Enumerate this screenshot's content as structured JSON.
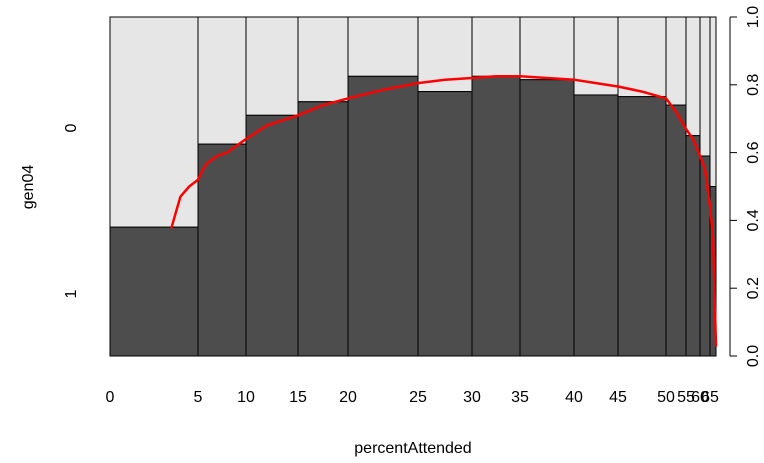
{
  "chart_data": {
    "type": "spineplot",
    "xlabel": "percentAttended",
    "ylabel": "gen04",
    "x_tick_labels": [
      "0",
      "5",
      "10",
      "15",
      "20",
      "25",
      "30",
      "35",
      "40",
      "45",
      "50",
      "55",
      "60",
      "65"
    ],
    "y_left_tick_labels": [
      "0",
      "1"
    ],
    "y_right_ticks": [
      0.0,
      0.2,
      0.4,
      0.6,
      0.8,
      1.0
    ],
    "y_right_tick_labels": [
      "0.0",
      "0.2",
      "0.4",
      "0.6",
      "0.8",
      "1.0"
    ],
    "bins": [
      {
        "from": 0,
        "to": 5,
        "prop_1": 0.38
      },
      {
        "from": 5,
        "to": 10,
        "prop_1": 0.625
      },
      {
        "from": 10,
        "to": 15,
        "prop_1": 0.71
      },
      {
        "from": 15,
        "to": 20,
        "prop_1": 0.75
      },
      {
        "from": 20,
        "to": 25,
        "prop_1": 0.825
      },
      {
        "from": 25,
        "to": 30,
        "prop_1": 0.78
      },
      {
        "from": 30,
        "to": 35,
        "prop_1": 0.825
      },
      {
        "from": 35,
        "to": 40,
        "prop_1": 0.815
      },
      {
        "from": 40,
        "to": 45,
        "prop_1": 0.77
      },
      {
        "from": 45,
        "to": 50,
        "prop_1": 0.765
      },
      {
        "from": 50,
        "to": 55,
        "prop_1": 0.74
      },
      {
        "from": 55,
        "to": 60,
        "prop_1": 0.65
      },
      {
        "from": 60,
        "to": 65,
        "prop_1": 0.59
      },
      {
        "from": 65,
        "to": 70,
        "prop_1": 0.5
      }
    ],
    "colors": {
      "level_1": "#4d4d4d",
      "level_0": "#e6e6e6",
      "border": "#000000",
      "smooth_line": "#ff0000"
    },
    "smooth_curve": [
      [
        3.5,
        0.38
      ],
      [
        4.0,
        0.47
      ],
      [
        4.5,
        0.5
      ],
      [
        5.0,
        0.52
      ],
      [
        5.5,
        0.55
      ],
      [
        6.0,
        0.57
      ],
      [
        7.0,
        0.59
      ],
      [
        8.0,
        0.6
      ],
      [
        9.0,
        0.62
      ],
      [
        10.0,
        0.64
      ],
      [
        11.0,
        0.66
      ],
      [
        12.0,
        0.68
      ],
      [
        13.0,
        0.69
      ],
      [
        15.0,
        0.71
      ],
      [
        17.5,
        0.74
      ],
      [
        20.0,
        0.76
      ],
      [
        22.5,
        0.785
      ],
      [
        25.0,
        0.805
      ],
      [
        27.5,
        0.815
      ],
      [
        30.0,
        0.82
      ],
      [
        32.5,
        0.825
      ],
      [
        35.0,
        0.825
      ],
      [
        37.5,
        0.82
      ],
      [
        40.0,
        0.815
      ],
      [
        42.5,
        0.805
      ],
      [
        45.0,
        0.795
      ],
      [
        47.5,
        0.78
      ],
      [
        50.0,
        0.76
      ],
      [
        52.5,
        0.72
      ],
      [
        55.0,
        0.67
      ],
      [
        57.5,
        0.64
      ],
      [
        60.0,
        0.59
      ],
      [
        62.5,
        0.55
      ],
      [
        65.0,
        0.44
      ],
      [
        67.5,
        0.35
      ],
      [
        70.0,
        0.03
      ]
    ]
  }
}
